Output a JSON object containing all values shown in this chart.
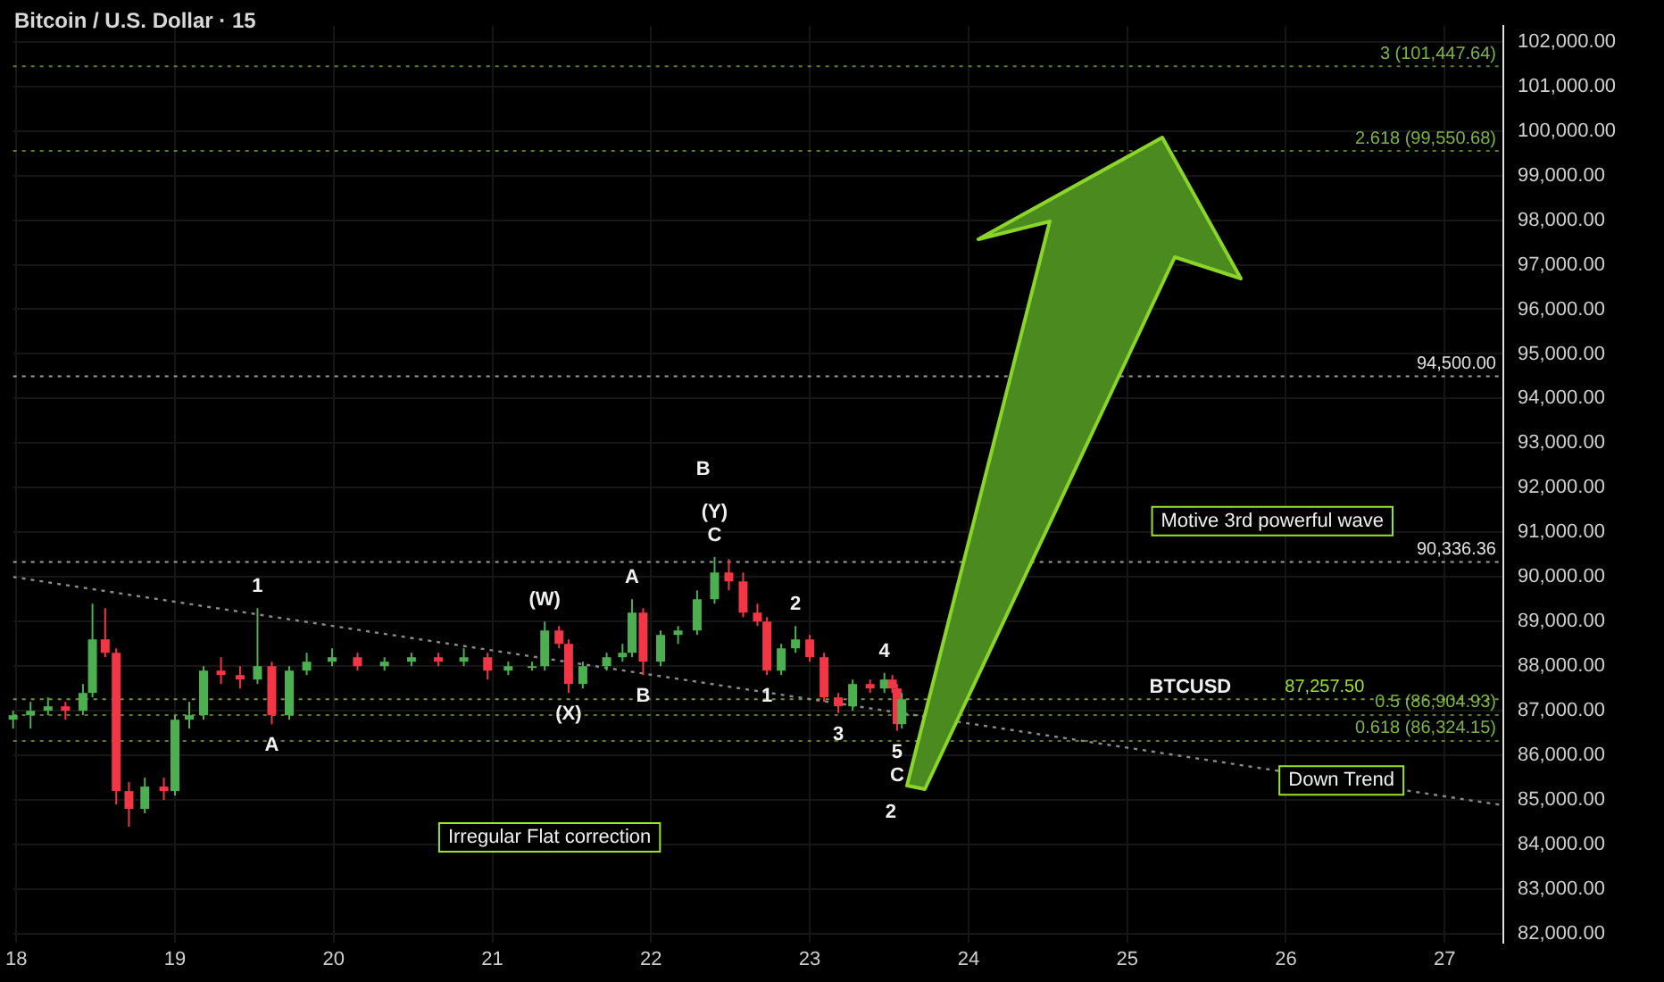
{
  "chart_data": {
    "type": "candlestick",
    "title": "Bitcoin / U.S. Dollar · 15",
    "xlim": [
      17.98,
      27.37
    ],
    "xticks": [
      18,
      19,
      20,
      21,
      22,
      23,
      24,
      25,
      26,
      27
    ],
    "ylim": [
      81800,
      102350
    ],
    "yticks": [
      {
        "value": 82000,
        "label": "82,000.00"
      },
      {
        "value": 83000,
        "label": "83,000.00"
      },
      {
        "value": 84000,
        "label": "84,000.00"
      },
      {
        "value": 85000,
        "label": "85,000.00"
      },
      {
        "value": 86000,
        "label": "86,000.00"
      },
      {
        "value": 87000,
        "label": "87,000.00"
      },
      {
        "value": 88000,
        "label": "88,000.00"
      },
      {
        "value": 89000,
        "label": "89,000.00"
      },
      {
        "value": 90000,
        "label": "90,000.00"
      },
      {
        "value": 91000,
        "label": "91,000.00"
      },
      {
        "value": 92000,
        "label": "92,000.00"
      },
      {
        "value": 93000,
        "label": "93,000.00"
      },
      {
        "value": 94000,
        "label": "94,000.00"
      },
      {
        "value": 95000,
        "label": "95,000.00"
      },
      {
        "value": 96000,
        "label": "96,000.00"
      },
      {
        "value": 97000,
        "label": "97,000.00"
      },
      {
        "value": 98000,
        "label": "98,000.00"
      },
      {
        "value": 99000,
        "label": "99,000.00"
      },
      {
        "value": 100000,
        "label": "100,000.00"
      },
      {
        "value": 101000,
        "label": "101,000.00"
      },
      {
        "value": 102000,
        "label": "102,000.00"
      }
    ],
    "grid": true,
    "legend": false,
    "series": [
      {
        "x": [
          17.98,
          18.09,
          18.2,
          18.31,
          18.42,
          18.48,
          18.56,
          18.63,
          18.71,
          18.81,
          18.93,
          19.0,
          19.09,
          19.18,
          19.29,
          19.41,
          19.52,
          19.61,
          19.72,
          19.83,
          19.99,
          20.15,
          20.32,
          20.49,
          20.66,
          20.82,
          20.97,
          21.1,
          21.25,
          21.33,
          21.42,
          21.48,
          21.57,
          21.72,
          21.82,
          21.88,
          21.95,
          22.06,
          22.17,
          22.29,
          22.4,
          22.49,
          22.58,
          22.67,
          22.73,
          22.82,
          22.91,
          23.0,
          23.09,
          23.18,
          23.27,
          23.38,
          23.47,
          23.52,
          23.55,
          23.58
        ],
        "ohlc": [
          [
            86800,
            87000,
            86600,
            86900
          ],
          [
            86900,
            87200,
            86600,
            87000
          ],
          [
            87000,
            87300,
            86900,
            87100
          ],
          [
            87100,
            87200,
            86800,
            87000
          ],
          [
            87000,
            87600,
            86900,
            87400
          ],
          [
            87400,
            89400,
            87300,
            88600
          ],
          [
            88600,
            89300,
            88200,
            88300
          ],
          [
            88300,
            88400,
            84900,
            85200
          ],
          [
            85200,
            85400,
            84400,
            84800
          ],
          [
            84800,
            85500,
            84700,
            85300
          ],
          [
            85300,
            85500,
            85000,
            85200
          ],
          [
            85200,
            86900,
            85100,
            86800
          ],
          [
            86800,
            87200,
            86600,
            86900
          ],
          [
            86900,
            88000,
            86800,
            87900
          ],
          [
            87900,
            88200,
            87600,
            87800
          ],
          [
            87800,
            88000,
            87500,
            87700
          ],
          [
            87700,
            89300,
            87600,
            88000
          ],
          [
            88000,
            88100,
            86700,
            86900
          ],
          [
            86900,
            88000,
            86800,
            87900
          ],
          [
            87900,
            88300,
            87800,
            88100
          ],
          [
            88100,
            88400,
            88000,
            88200
          ],
          [
            88200,
            88300,
            87900,
            88000
          ],
          [
            88000,
            88200,
            87900,
            88100
          ],
          [
            88100,
            88300,
            88000,
            88200
          ],
          [
            88200,
            88300,
            88000,
            88100
          ],
          [
            88100,
            88400,
            88000,
            88200
          ],
          [
            88200,
            88300,
            87700,
            87900
          ],
          [
            87900,
            88100,
            87800,
            88000
          ],
          [
            88000,
            88100,
            87900,
            88000
          ],
          [
            88000,
            89000,
            87900,
            88800
          ],
          [
            88800,
            88900,
            88400,
            88500
          ],
          [
            88500,
            88600,
            87400,
            87600
          ],
          [
            87600,
            88100,
            87500,
            88000
          ],
          [
            88000,
            88300,
            87900,
            88200
          ],
          [
            88200,
            88500,
            88100,
            88300
          ],
          [
            88300,
            89500,
            88200,
            89200
          ],
          [
            89200,
            89300,
            87800,
            88100
          ],
          [
            88100,
            88800,
            88000,
            88700
          ],
          [
            88700,
            88900,
            88500,
            88800
          ],
          [
            88800,
            89700,
            88700,
            89500
          ],
          [
            89500,
            90450,
            89400,
            90100
          ],
          [
            90100,
            90400,
            89700,
            89900
          ],
          [
            89900,
            90100,
            89100,
            89200
          ],
          [
            89200,
            89400,
            88900,
            89000
          ],
          [
            89000,
            89100,
            87800,
            87900
          ],
          [
            87900,
            88500,
            87800,
            88400
          ],
          [
            88400,
            88900,
            88300,
            88600
          ],
          [
            88600,
            88700,
            88100,
            88200
          ],
          [
            88200,
            88300,
            87200,
            87300
          ],
          [
            87300,
            87400,
            86950,
            87100
          ],
          [
            87100,
            87700,
            87000,
            87600
          ],
          [
            87600,
            87700,
            87400,
            87500
          ],
          [
            87500,
            87850,
            87400,
            87700
          ],
          [
            87700,
            87800,
            87400,
            87500
          ],
          [
            87500,
            87600,
            86550,
            86700
          ],
          [
            86700,
            87400,
            86600,
            87257.5
          ]
        ],
        "colors": [
          "#4caf50",
          "#4caf50",
          "#4caf50",
          "#f23645",
          "#4caf50",
          "#4caf50",
          "#f23645",
          "#f23645",
          "#f23645",
          "#4caf50",
          "#f23645",
          "#4caf50",
          "#4caf50",
          "#4caf50",
          "#f23645",
          "#f23645",
          "#4caf50",
          "#f23645",
          "#4caf50",
          "#4caf50",
          "#4caf50",
          "#f23645",
          "#4caf50",
          "#4caf50",
          "#f23645",
          "#4caf50",
          "#f23645",
          "#4caf50",
          "#4caf50",
          "#4caf50",
          "#f23645",
          "#f23645",
          "#4caf50",
          "#4caf50",
          "#4caf50",
          "#4caf50",
          "#f23645",
          "#4caf50",
          "#4caf50",
          "#4caf50",
          "#4caf50",
          "#f23645",
          "#f23645",
          "#f23645",
          "#f23645",
          "#4caf50",
          "#4caf50",
          "#f23645",
          "#f23645",
          "#f23645",
          "#4caf50",
          "#f23645",
          "#4caf50",
          "#f23645",
          "#f23645",
          "#4caf50"
        ]
      },
      {
        "type": "line",
        "x": [
          17.98,
          27.37
        ],
        "values": [
          90000,
          84880
        ],
        "color": "#8a8a8a",
        "line_style": "dotted",
        "marker": "none"
      }
    ],
    "ref_lines": [
      {
        "axis": "y",
        "value": 101447.64,
        "label": "3 (101,447.64)",
        "color": "#7cb342",
        "line_style": "dotted"
      },
      {
        "axis": "y",
        "value": 99550.68,
        "label": "2.618 (99,550.68)",
        "color": "#7cb342",
        "line_style": "dotted"
      },
      {
        "axis": "y",
        "value": 86904.93,
        "label": "0.5 (86,904.93)",
        "color": "#7cb342",
        "line_style": "dotted"
      },
      {
        "axis": "y",
        "value": 86324.15,
        "label": "0.618 (86,324.15)",
        "color": "#7cb342",
        "line_style": "dotted"
      },
      {
        "axis": "y",
        "value": 94500,
        "label": "94,500.00",
        "color": "#e0e0e0",
        "line_style": "dotted"
      },
      {
        "axis": "y",
        "value": 90336.36,
        "label": "90,336.36",
        "color": "#e0e0e0",
        "line_style": "dotted"
      },
      {
        "axis": "y",
        "value": 87257.5,
        "label": "87,257.50",
        "color": "#9be22d",
        "line_style": "dotted"
      }
    ],
    "annotations": [
      {
        "text": "1",
        "x": 19.52,
        "y": 89300
      },
      {
        "text": "(W)",
        "x": 21.33,
        "y": 89000
      },
      {
        "text": "A",
        "x": 21.88,
        "y": 89500
      },
      {
        "text": "C",
        "x": 22.4,
        "y": 90450
      },
      {
        "text": "(Y)",
        "x": 22.4,
        "y": 90450
      },
      {
        "text": "(X)",
        "x": 21.48,
        "y": 87400
      },
      {
        "text": "B",
        "x": 21.95,
        "y": 87800
      },
      {
        "text": "A",
        "x": 19.61,
        "y": 86700
      },
      {
        "text": "1",
        "x": 22.73,
        "y": 87800
      },
      {
        "text": "2",
        "x": 22.91,
        "y": 88900
      },
      {
        "text": "3",
        "x": 23.18,
        "y": 86950
      },
      {
        "text": "4",
        "x": 23.47,
        "y": 87850
      },
      {
        "text": "5",
        "x": 23.55,
        "y": 86550
      },
      {
        "text": "C",
        "x": 23.55,
        "y": 86550
      },
      {
        "text": "Down Trend",
        "x": 26.35,
        "y": 85436
      },
      "Irregular Flat correction",
      "Motive 3rd powerful wave",
      "B",
      "2",
      "BTCUSD"
    ]
  }
}
